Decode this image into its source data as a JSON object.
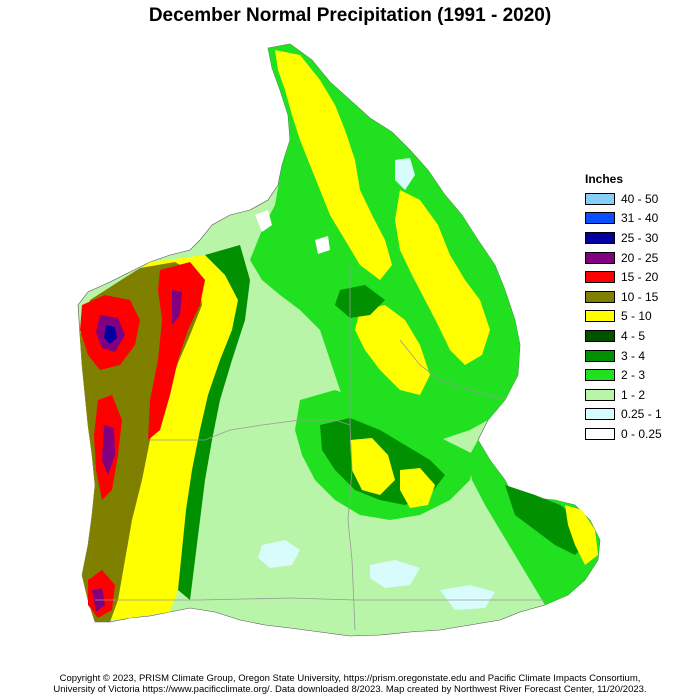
{
  "title": "December Normal Precipitation (1991 - 2020)",
  "legend": {
    "title": "Inches",
    "items": [
      {
        "label": "40 - 50",
        "color": "#87cefa"
      },
      {
        "label": "31 - 40",
        "color": "#0a50ff"
      },
      {
        "label": "25 - 30",
        "color": "#0000a0"
      },
      {
        "label": "20 - 25",
        "color": "#800080"
      },
      {
        "label": "15 - 20",
        "color": "#ff0000"
      },
      {
        "label": "10 - 15",
        "color": "#808000"
      },
      {
        "label": "5 - 10",
        "color": "#ffff00"
      },
      {
        "label": "4 - 5",
        "color": "#005000"
      },
      {
        "label": "3 - 4",
        "color": "#009000"
      },
      {
        "label": "2 - 3",
        "color": "#20e020"
      },
      {
        "label": "1 - 2",
        "color": "#b8f5a8"
      },
      {
        "label": "0.25 - 1",
        "color": "#d8fcfc"
      },
      {
        "label": "0 - 0.25",
        "color": "#ffffff"
      }
    ]
  },
  "footer": {
    "line1": "Copyright © 2023, PRISM Climate Group, Oregon State University, https://prism.oregonstate.edu and Pacific Climate Impacts Consortium,",
    "line2": "University of Victoria https://www.pacificclimate.org/.  Data downloaded 8/2023. Map created by Northwest River Forecast Center, 11/20/2023."
  }
}
